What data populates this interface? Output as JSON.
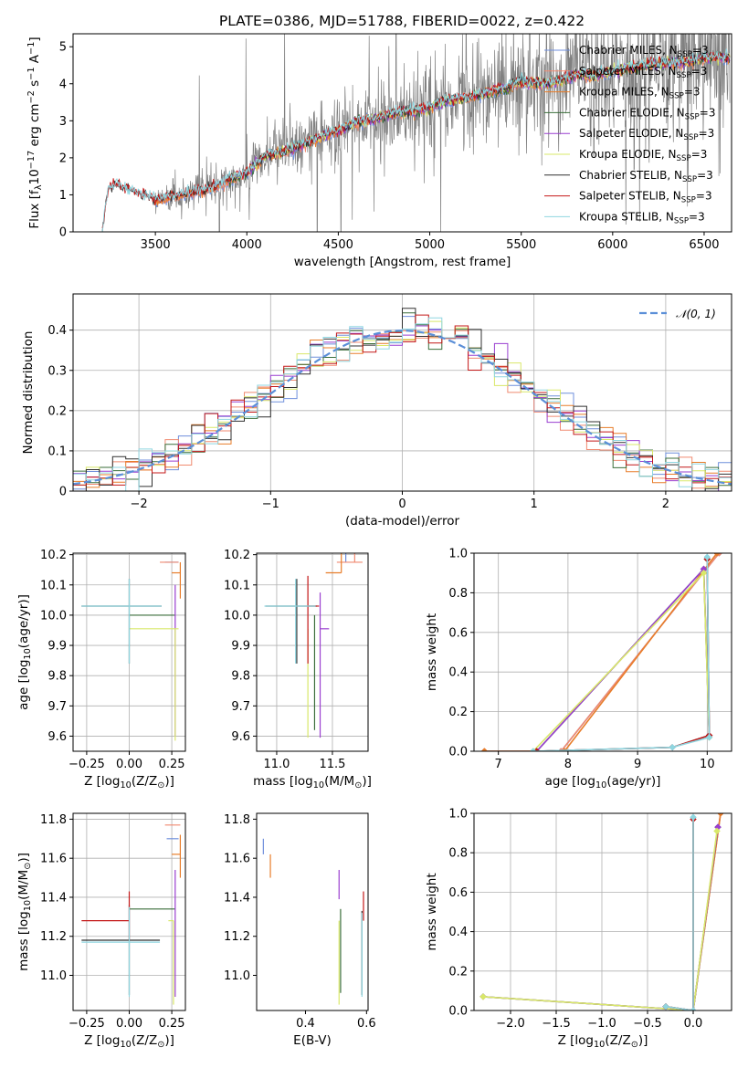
{
  "figure_title": "PLATE=0386, MJD=51788, FIBERID=0022, z=0.422",
  "colors": {
    "chabrier_miles": "#6f8fdc",
    "salpeter_miles": "#f08a70",
    "kroupa_miles": "#e87d2a",
    "chabrier_elodie": "#3a6e3a",
    "salpeter_elodie": "#9a3fd0",
    "kroupa_elodie": "#d9e86a",
    "chabrier_stelib": "#303030",
    "salpeter_stelib": "#c41818",
    "kroupa_stelib": "#8fd6e0",
    "data_spectrum": "#808080",
    "gaussian": "#5b8fd8"
  },
  "chart_data": [
    {
      "id": "spectrum",
      "type": "line",
      "title": "PLATE=0386, MJD=51788, FIBERID=0022, z=0.422",
      "xlabel": "wavelength [Angstrom, rest frame]",
      "ylabel": "Flux [f_λ 10^-17 erg cm^-2 s^-1 A^-1]",
      "xlim": [
        3050,
        6650
      ],
      "ylim": [
        0,
        5.35
      ],
      "xticks": [
        3500,
        4000,
        4500,
        5000,
        5500,
        6000,
        6500
      ],
      "yticks": [
        0,
        1,
        2,
        3,
        4,
        5
      ],
      "legend_position": "upper-right",
      "legend": [
        "Chabrier MILES, N_SSP=3",
        "Salpeter MILES, N_SSP=3",
        "Kroupa MILES, N_SSP=3",
        "Chabrier ELODIE, N_SSP=3",
        "Salpeter ELODIE, N_SSP=3",
        "Kroupa ELODIE, N_SSP=3",
        "Chabrier STELIB, N_SSP=3",
        "Salpeter STELIB, N_SSP=3",
        "Kroupa STELIB, N_SSP=3"
      ],
      "continuum": {
        "x": [
          3210,
          3240,
          3280,
          3350,
          3420,
          3500,
          3600,
          3700,
          3800,
          3900,
          4000,
          4100,
          4200,
          4300,
          4400,
          4500,
          4600,
          4700,
          4800,
          4900,
          5000,
          5100,
          5200,
          5300,
          5400,
          5500,
          5600,
          5700,
          5800,
          5900,
          6000,
          6100,
          6200,
          6300,
          6400,
          6500,
          6600
        ],
        "y": [
          0,
          1.15,
          1.25,
          1.15,
          1.02,
          0.85,
          0.95,
          1.05,
          1.15,
          1.4,
          1.6,
          2.05,
          2.15,
          2.35,
          2.55,
          2.75,
          2.95,
          3.05,
          3.2,
          3.25,
          3.35,
          3.55,
          3.6,
          3.75,
          3.85,
          4.05,
          4.0,
          4.05,
          4.25,
          4.2,
          4.35,
          4.45,
          4.5,
          4.55,
          4.6,
          4.7,
          4.7
        ]
      },
      "noise_growth": [
        0.2,
        1.6
      ]
    },
    {
      "id": "residuals",
      "type": "histogram",
      "xlabel": "(data-model)/error",
      "ylabel": "Normed distribution",
      "xlim": [
        -2.5,
        2.5
      ],
      "ylim": [
        0,
        0.49
      ],
      "xticks": [
        -2,
        -1,
        0,
        1,
        2
      ],
      "yticks": [
        0,
        0.1,
        0.2,
        0.3,
        0.4
      ],
      "grid": true,
      "legend_position": "upper-right",
      "legend": [
        "𝒩(0, 1)"
      ],
      "bin_width": 0.1
    },
    {
      "id": "age-vs-Z",
      "type": "errorbar",
      "xlabel": "Z [log10(Z/Z⊙)]",
      "ylabel": "age [log10(age/yr)]",
      "xlim": [
        -0.33,
        0.33
      ],
      "ylim": [
        9.55,
        10.205
      ],
      "xticks": [
        -0.25,
        0,
        0.25
      ],
      "xticklabels": [
        "−0.25",
        "0.00",
        "0.25"
      ],
      "yticks": [
        9.6,
        9.7,
        9.8,
        9.9,
        10.0,
        10.1,
        10.2
      ],
      "yticklabels": [
        "9.6",
        "9.7",
        "9.8",
        "9.9",
        "10.0",
        "10.1",
        "10.2"
      ],
      "grid": true,
      "points": [
        {
          "key": "chabrier_miles",
          "x": 0.26,
          "xerr": [
            0.05,
            0.03
          ],
          "y": 10.175,
          "yerr": [
            0.0,
            0.0
          ]
        },
        {
          "key": "salpeter_miles",
          "x": 0.26,
          "xerr": [
            0.08,
            0.03
          ],
          "y": 10.175,
          "yerr": [
            0.0,
            0.0
          ]
        },
        {
          "key": "kroupa_miles",
          "x": 0.3,
          "xerr": [
            0.05,
            0.0
          ],
          "y": 10.14,
          "yerr": [
            0.085,
            0.035
          ]
        },
        {
          "key": "chabrier_elodie",
          "x": 0.0,
          "xerr": [
            0.0,
            0.27
          ],
          "y": 10.0,
          "yerr": [
            0.0,
            0.0
          ]
        },
        {
          "key": "salpeter_elodie",
          "x": 0.27,
          "xerr": [
            0.0,
            0.0
          ],
          "y": 10.0,
          "yerr": [
            0.4,
            0.1
          ]
        },
        {
          "key": "kroupa_elodie",
          "x": 0.27,
          "xerr": [
            0.27,
            0.02
          ],
          "y": 9.955,
          "yerr": [
            0.37,
            0.0
          ]
        },
        {
          "key": "chabrier_stelib",
          "x": 0.0,
          "xerr": [
            0.28,
            0.19
          ],
          "y": 10.03,
          "yerr": [
            0.19,
            0.09
          ]
        },
        {
          "key": "salpeter_stelib",
          "x": 0.0,
          "xerr": [
            0.0,
            0.0
          ],
          "y": 10.03,
          "yerr": [
            0.0,
            0.0
          ]
        },
        {
          "key": "kroupa_stelib",
          "x": 0.0,
          "xerr": [
            0.28,
            0.19
          ],
          "y": 10.03,
          "yerr": [
            0.19,
            0.09
          ]
        }
      ]
    },
    {
      "id": "age-vs-mass",
      "type": "errorbar",
      "xlabel": "mass [log10(M/M⊙)]",
      "xlim": [
        10.82,
        11.82
      ],
      "ylim": [
        9.55,
        10.205
      ],
      "xticks": [
        11.0,
        11.5
      ],
      "xticklabels": [
        "11.0",
        "11.5"
      ],
      "yticks": [
        9.6,
        9.7,
        9.8,
        9.9,
        10.0,
        10.1,
        10.2
      ],
      "yticklabels": [
        "9.6",
        "9.7",
        "9.8",
        "9.9",
        "10.0",
        "10.1",
        "10.2"
      ],
      "grid": true,
      "points": [
        {
          "key": "chabrier_miles",
          "x": 11.62,
          "xerr": [
            0.0,
            0.0
          ],
          "y": 10.175,
          "yerr": [
            0.0,
            0.085
          ]
        },
        {
          "key": "salpeter_miles",
          "x": 11.7,
          "xerr": [
            0.16,
            0.07
          ],
          "y": 10.175,
          "yerr": [
            0.0,
            0.08
          ]
        },
        {
          "key": "kroupa_miles",
          "x": 11.58,
          "xerr": [
            0.14,
            0.0
          ],
          "y": 10.14,
          "yerr": [
            0.0,
            0.08
          ]
        },
        {
          "key": "chabrier_elodie",
          "x": 11.34,
          "xerr": [
            0.0,
            0.0
          ],
          "y": 10.0,
          "yerr": [
            0.38,
            0.0
          ]
        },
        {
          "key": "salpeter_elodie",
          "x": 11.39,
          "xerr": [
            0.0,
            0.08
          ],
          "y": 9.955,
          "yerr": [
            0.36,
            0.12
          ]
        },
        {
          "key": "kroupa_elodie",
          "x": 11.28,
          "xerr": [
            0.0,
            0.0
          ],
          "y": 9.955,
          "yerr": [
            0.36,
            0.0
          ]
        },
        {
          "key": "chabrier_stelib",
          "x": 11.18,
          "xerr": [
            0.28,
            0.18
          ],
          "y": 10.03,
          "yerr": [
            0.19,
            0.09
          ]
        },
        {
          "key": "salpeter_stelib",
          "x": 11.28,
          "xerr": [
            0.0,
            0.1
          ],
          "y": 10.03,
          "yerr": [
            0.19,
            0.1
          ]
        },
        {
          "key": "kroupa_stelib",
          "x": 11.17,
          "xerr": [
            0.28,
            0.18
          ],
          "y": 10.03,
          "yerr": [
            0.19,
            0.09
          ]
        }
      ]
    },
    {
      "id": "mass-weight-vs-age",
      "type": "line",
      "xlabel": "age [log10(age/yr)]",
      "ylabel": "mass weight",
      "xlim": [
        6.65,
        10.35
      ],
      "ylim": [
        0,
        1.0
      ],
      "xticks": [
        7,
        8,
        9,
        10
      ],
      "yticks": [
        0,
        0.2,
        0.4,
        0.6,
        0.8,
        1.0
      ],
      "yticklabels": [
        "0.0",
        "0.2",
        "0.4",
        "0.6",
        "0.8",
        "1.0"
      ],
      "grid": true,
      "series": [
        {
          "key": "chabrier_miles",
          "x": [
            6.8,
            7.9,
            10.17
          ],
          "y": [
            0.0,
            0.0,
            1.0
          ]
        },
        {
          "key": "salpeter_miles",
          "x": [
            6.8,
            7.9,
            10.17
          ],
          "y": [
            0.0,
            0.0,
            1.0
          ]
        },
        {
          "key": "kroupa_miles",
          "x": [
            6.8,
            7.95,
            10.14
          ],
          "y": [
            0.0,
            0.0,
            1.0
          ]
        },
        {
          "key": "chabrier_elodie",
          "x": [
            7.55,
            9.95,
            10.03
          ],
          "y": [
            0.0,
            0.92,
            0.08
          ]
        },
        {
          "key": "salpeter_elodie",
          "x": [
            7.55,
            9.95,
            10.03
          ],
          "y": [
            0.0,
            0.92,
            0.08
          ]
        },
        {
          "key": "kroupa_elodie",
          "x": [
            7.5,
            9.95,
            10.03
          ],
          "y": [
            0.0,
            0.9,
            0.07
          ]
        },
        {
          "key": "chabrier_stelib",
          "x": [
            7.55,
            9.5,
            10.03,
            10.0
          ],
          "y": [
            0.0,
            0.02,
            0.08,
            0.97
          ]
        },
        {
          "key": "salpeter_stelib",
          "x": [
            7.55,
            9.5,
            10.03,
            10.0
          ],
          "y": [
            0.0,
            0.02,
            0.08,
            0.97
          ]
        },
        {
          "key": "kroupa_stelib",
          "x": [
            7.5,
            9.5,
            10.03,
            10.0
          ],
          "y": [
            0.0,
            0.02,
            0.07,
            0.98
          ]
        }
      ]
    },
    {
      "id": "mass-vs-Z",
      "type": "errorbar",
      "xlabel": "Z [log10(Z/Z⊙)]",
      "ylabel": "mass [log10(M/M⊙)]",
      "xlim": [
        -0.33,
        0.33
      ],
      "ylim": [
        10.82,
        11.83
      ],
      "xticks": [
        -0.25,
        0,
        0.25
      ],
      "xticklabels": [
        "−0.25",
        "0.00",
        "0.25"
      ],
      "yticks": [
        11.0,
        11.2,
        11.4,
        11.6,
        11.8
      ],
      "yticklabels": [
        "11.0",
        "11.2",
        "11.4",
        "11.6",
        "11.8"
      ],
      "grid": true,
      "points": [
        {
          "key": "chabrier_miles",
          "x": 0.29,
          "xerr": [
            0.07,
            0.0
          ],
          "y": 11.7,
          "yerr": [
            0.0,
            0.0
          ]
        },
        {
          "key": "salpeter_miles",
          "x": 0.3,
          "xerr": [
            0.09,
            0.0
          ],
          "y": 11.77,
          "yerr": [
            0.0,
            0.0
          ]
        },
        {
          "key": "kroupa_miles",
          "x": 0.3,
          "xerr": [
            0.05,
            0.0
          ],
          "y": 11.62,
          "yerr": [
            0.12,
            0.1
          ]
        },
        {
          "key": "chabrier_elodie",
          "x": 0.27,
          "xerr": [
            0.27,
            0.0
          ],
          "y": 11.34,
          "yerr": [
            0.0,
            0.0
          ]
        },
        {
          "key": "salpeter_elodie",
          "x": 0.27,
          "xerr": [
            0.0,
            0.0
          ],
          "y": 11.39,
          "yerr": [
            0.5,
            0.15
          ]
        },
        {
          "key": "kroupa_elodie",
          "x": 0.26,
          "xerr": [
            0.03,
            0.0
          ],
          "y": 11.28,
          "yerr": [
            0.43,
            0.0
          ]
        },
        {
          "key": "chabrier_stelib",
          "x": 0.0,
          "xerr": [
            0.28,
            0.18
          ],
          "y": 11.18,
          "yerr": [
            0.28,
            0.18
          ]
        },
        {
          "key": "salpeter_stelib",
          "x": 0.0,
          "xerr": [
            0.28,
            0.0
          ],
          "y": 11.28,
          "yerr": [
            0.1,
            0.15
          ]
        },
        {
          "key": "kroupa_stelib",
          "x": 0.0,
          "xerr": [
            0.28,
            0.18
          ],
          "y": 11.17,
          "yerr": [
            0.28,
            0.18
          ]
        }
      ]
    },
    {
      "id": "mass-vs-EBV",
      "type": "errorbar",
      "xlabel": "E(B-V)",
      "xlim": [
        0.24,
        0.605
      ],
      "ylim": [
        10.82,
        11.83
      ],
      "xticks": [
        0.4,
        0.6
      ],
      "xticklabels": [
        "0.4",
        "0.6"
      ],
      "yticks": [
        11.0,
        11.2,
        11.4,
        11.6,
        11.8
      ],
      "yticklabels": [
        "11.0",
        "11.2",
        "11.4",
        "11.6",
        "11.8"
      ],
      "grid": false,
      "points": [
        {
          "key": "chabrier_miles",
          "x": 0.262,
          "xerr": [
            0.0,
            0.0
          ],
          "y": 11.7,
          "yerr": [
            0.08,
            0.0
          ]
        },
        {
          "key": "salpeter_miles",
          "x": 0.26,
          "xerr": [
            0.0,
            0.0
          ],
          "y": 11.77,
          "yerr": [
            0.0,
            0.0
          ]
        },
        {
          "key": "kroupa_miles",
          "x": 0.285,
          "xerr": [
            0.0,
            0.0
          ],
          "y": 11.62,
          "yerr": [
            0.12,
            0.0
          ]
        },
        {
          "key": "chabrier_elodie",
          "x": 0.515,
          "xerr": [
            0.0,
            0.0
          ],
          "y": 11.34,
          "yerr": [
            0.43,
            0.0
          ]
        },
        {
          "key": "salpeter_elodie",
          "x": 0.51,
          "xerr": [
            0.0,
            0.0
          ],
          "y": 11.39,
          "yerr": [
            0.0,
            0.15
          ]
        },
        {
          "key": "kroupa_elodie",
          "x": 0.51,
          "xerr": [
            0.0,
            0.0
          ],
          "y": 11.28,
          "yerr": [
            0.43,
            0.0
          ]
        },
        {
          "key": "chabrier_stelib",
          "x": 0.585,
          "xerr": [
            0.0,
            0.0
          ],
          "y": 11.18,
          "yerr": [
            0.28,
            0.15
          ]
        },
        {
          "key": "salpeter_stelib",
          "x": 0.59,
          "xerr": [
            0.0,
            0.0
          ],
          "y": 11.28,
          "yerr": [
            0.0,
            0.15
          ]
        },
        {
          "key": "kroupa_stelib",
          "x": 0.585,
          "xerr": [
            0.0,
            0.0
          ],
          "y": 11.17,
          "yerr": [
            0.28,
            0.15
          ]
        }
      ]
    },
    {
      "id": "mass-weight-vs-Z",
      "type": "line",
      "xlabel": "Z [log10(Z/Z⊙)]",
      "ylabel": "mass weight",
      "xlim": [
        -2.4,
        0.42
      ],
      "ylim": [
        0,
        1.0
      ],
      "xticks": [
        -2.0,
        -1.5,
        -1.0,
        -0.5,
        0.0
      ],
      "xticklabels": [
        "−2.0",
        "−1.5",
        "−1.0",
        "−0.5",
        "0.0"
      ],
      "yticks": [
        0,
        0.2,
        0.4,
        0.6,
        0.8,
        1.0
      ],
      "yticklabels": [
        "0.0",
        "0.2",
        "0.4",
        "0.6",
        "0.8",
        "1.0"
      ],
      "grid": true,
      "series": [
        {
          "key": "chabrier_miles",
          "x": [
            0.0,
            0.0,
            0.3
          ],
          "y": [
            0.97,
            0.0,
            1.0
          ]
        },
        {
          "key": "salpeter_miles",
          "x": [
            0.0,
            0.0,
            0.3
          ],
          "y": [
            0.97,
            0.0,
            1.0
          ]
        },
        {
          "key": "kroupa_miles",
          "x": [
            0.0,
            0.0,
            0.3
          ],
          "y": [
            0.97,
            0.0,
            1.0
          ]
        },
        {
          "key": "chabrier_elodie",
          "x": [
            -2.3,
            0.0,
            0.27
          ],
          "y": [
            0.07,
            0.0,
            0.93
          ]
        },
        {
          "key": "salpeter_elodie",
          "x": [
            -2.3,
            0.0,
            0.27
          ],
          "y": [
            0.07,
            0.0,
            0.93
          ]
        },
        {
          "key": "kroupa_elodie",
          "x": [
            -2.3,
            0.0,
            0.26
          ],
          "y": [
            0.07,
            0.0,
            0.91
          ]
        },
        {
          "key": "chabrier_stelib",
          "x": [
            -0.3,
            0.0,
            0.0
          ],
          "y": [
            0.02,
            0.0,
            0.97
          ]
        },
        {
          "key": "salpeter_stelib",
          "x": [
            -0.3,
            0.0,
            0.0
          ],
          "y": [
            0.02,
            0.0,
            0.97
          ]
        },
        {
          "key": "kroupa_stelib",
          "x": [
            -0.3,
            0.0,
            0.0
          ],
          "y": [
            0.02,
            0.0,
            0.98
          ]
        }
      ]
    }
  ]
}
